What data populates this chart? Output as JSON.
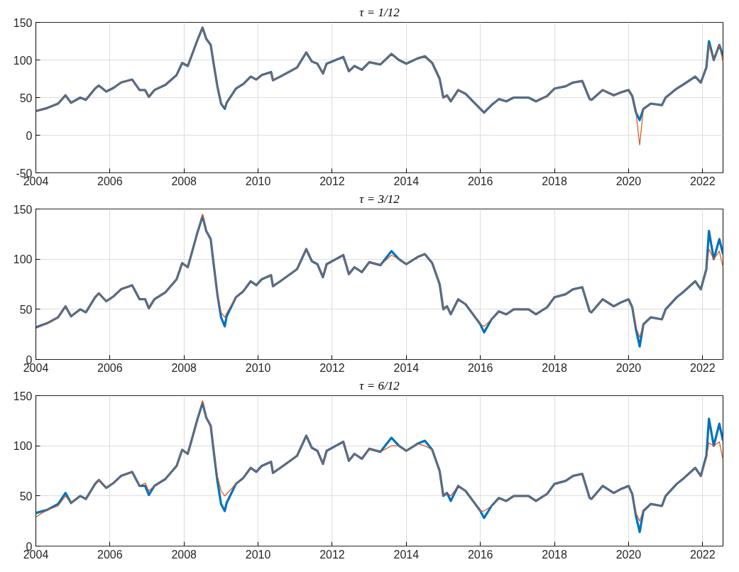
{
  "chart_data": [
    {
      "type": "line",
      "title": "τ = 1/12",
      "xlim": [
        2004,
        2022.55
      ],
      "xticks": [
        2004,
        2006,
        2008,
        2010,
        2012,
        2014,
        2016,
        2018,
        2020,
        2022
      ],
      "ylim": [
        -50,
        150
      ],
      "yticks": [
        -50,
        0,
        50,
        100,
        150
      ],
      "grid": true,
      "x": [
        2004.0,
        2004.3,
        2004.6,
        2004.8,
        2004.95,
        2005.2,
        2005.35,
        2005.6,
        2005.7,
        2005.9,
        2006.1,
        2006.3,
        2006.6,
        2006.8,
        2006.95,
        2007.05,
        2007.2,
        2007.5,
        2007.8,
        2007.95,
        2008.1,
        2008.2,
        2008.35,
        2008.5,
        2008.6,
        2008.72,
        2008.8,
        2008.9,
        2009.0,
        2009.1,
        2009.15,
        2009.4,
        2009.6,
        2009.8,
        2009.95,
        2010.1,
        2010.35,
        2010.4,
        2010.6,
        2010.9,
        2011.05,
        2011.3,
        2011.45,
        2011.6,
        2011.75,
        2011.85,
        2012.1,
        2012.3,
        2012.45,
        2012.6,
        2012.8,
        2013.0,
        2013.3,
        2013.6,
        2013.8,
        2014.0,
        2014.3,
        2014.5,
        2014.7,
        2014.9,
        2015.0,
        2015.1,
        2015.2,
        2015.4,
        2015.6,
        2015.8,
        2016.0,
        2016.1,
        2016.3,
        2016.5,
        2016.7,
        2016.9,
        2017.3,
        2017.5,
        2017.8,
        2018.0,
        2018.3,
        2018.5,
        2018.75,
        2018.95,
        2019.0,
        2019.3,
        2019.6,
        2019.8,
        2020.0,
        2020.1,
        2020.2,
        2020.3,
        2020.4,
        2020.6,
        2020.9,
        2021.0,
        2021.3,
        2021.5,
        2021.8,
        2021.95,
        2022.1,
        2022.17,
        2022.3,
        2022.45,
        2022.55
      ],
      "series": [
        {
          "color": "#0072bd",
          "values": [
            32,
            36,
            42,
            53,
            43,
            50,
            47,
            62,
            66,
            58,
            63,
            70,
            74,
            60,
            60,
            51,
            60,
            67,
            80,
            96,
            92,
            105,
            125,
            143,
            128,
            120,
            95,
            65,
            42,
            35,
            43,
            62,
            68,
            78,
            74,
            80,
            84,
            73,
            78,
            86,
            90,
            110,
            98,
            95,
            82,
            95,
            100,
            104,
            85,
            92,
            87,
            97,
            94,
            108,
            100,
            95,
            102,
            105,
            96,
            75,
            50,
            53,
            45,
            60,
            55,
            45,
            35,
            30,
            40,
            48,
            45,
            50,
            50,
            45,
            52,
            62,
            65,
            70,
            72,
            48,
            47,
            60,
            53,
            57,
            60,
            52,
            30,
            20,
            35,
            42,
            40,
            50,
            62,
            68,
            78,
            70,
            90,
            125,
            100,
            120,
            105
          ]
        },
        {
          "color": "#d95319",
          "values": [
            32,
            36,
            42,
            53,
            43,
            50,
            47,
            62,
            66,
            58,
            63,
            70,
            74,
            60,
            60,
            51,
            60,
            67,
            80,
            96,
            92,
            105,
            125,
            143,
            128,
            120,
            95,
            65,
            42,
            37,
            43,
            62,
            68,
            78,
            74,
            80,
            84,
            73,
            78,
            86,
            90,
            110,
            98,
            95,
            82,
            95,
            100,
            104,
            85,
            92,
            87,
            97,
            94,
            108,
            100,
            95,
            102,
            105,
            96,
            75,
            50,
            53,
            45,
            60,
            55,
            45,
            35,
            30,
            40,
            48,
            45,
            50,
            50,
            45,
            52,
            62,
            65,
            70,
            72,
            48,
            47,
            60,
            53,
            57,
            60,
            52,
            30,
            -13,
            35,
            42,
            40,
            50,
            62,
            68,
            78,
            70,
            90,
            120,
            100,
            120,
            97
          ]
        }
      ]
    },
    {
      "type": "line",
      "title": "τ = 3/12",
      "xlim": [
        2004,
        2022.55
      ],
      "xticks": [
        2004,
        2006,
        2008,
        2010,
        2012,
        2014,
        2016,
        2018,
        2020,
        2022
      ],
      "ylim": [
        0,
        150
      ],
      "yticks": [
        0,
        50,
        100,
        150
      ],
      "grid": true,
      "x": [
        2004.0,
        2004.3,
        2004.6,
        2004.8,
        2004.95,
        2005.2,
        2005.35,
        2005.6,
        2005.7,
        2005.9,
        2006.1,
        2006.3,
        2006.6,
        2006.8,
        2006.95,
        2007.05,
        2007.2,
        2007.5,
        2007.8,
        2007.95,
        2008.1,
        2008.2,
        2008.35,
        2008.5,
        2008.6,
        2008.72,
        2008.8,
        2008.9,
        2009.0,
        2009.1,
        2009.15,
        2009.4,
        2009.6,
        2009.8,
        2009.95,
        2010.1,
        2010.35,
        2010.4,
        2010.6,
        2010.9,
        2011.05,
        2011.3,
        2011.45,
        2011.6,
        2011.75,
        2011.85,
        2012.1,
        2012.3,
        2012.45,
        2012.6,
        2012.8,
        2013.0,
        2013.3,
        2013.6,
        2013.8,
        2014.0,
        2014.3,
        2014.5,
        2014.7,
        2014.9,
        2015.0,
        2015.1,
        2015.2,
        2015.4,
        2015.6,
        2015.8,
        2016.0,
        2016.1,
        2016.3,
        2016.5,
        2016.7,
        2016.9,
        2017.3,
        2017.5,
        2017.8,
        2018.0,
        2018.3,
        2018.5,
        2018.75,
        2018.95,
        2019.0,
        2019.3,
        2019.6,
        2019.8,
        2020.0,
        2020.1,
        2020.2,
        2020.3,
        2020.4,
        2020.6,
        2020.9,
        2021.0,
        2021.3,
        2021.5,
        2021.8,
        2021.95,
        2022.1,
        2022.17,
        2022.3,
        2022.45,
        2022.55
      ],
      "series": [
        {
          "color": "#0072bd",
          "values": [
            32,
            36,
            42,
            53,
            43,
            50,
            47,
            62,
            66,
            58,
            63,
            70,
            74,
            60,
            60,
            51,
            60,
            67,
            80,
            96,
            92,
            105,
            125,
            143,
            128,
            120,
            95,
            65,
            42,
            33,
            43,
            62,
            68,
            78,
            74,
            80,
            84,
            73,
            78,
            86,
            90,
            110,
            98,
            95,
            82,
            95,
            100,
            104,
            85,
            92,
            87,
            97,
            94,
            108,
            100,
            95,
            102,
            105,
            96,
            75,
            50,
            53,
            45,
            60,
            55,
            45,
            35,
            27,
            40,
            48,
            45,
            50,
            50,
            45,
            52,
            62,
            65,
            70,
            72,
            48,
            47,
            60,
            53,
            57,
            60,
            52,
            30,
            13,
            35,
            42,
            40,
            50,
            62,
            68,
            78,
            70,
            90,
            128,
            100,
            120,
            105
          ]
        },
        {
          "color": "#d95319",
          "values": [
            31,
            36,
            42,
            53,
            43,
            50,
            47,
            62,
            66,
            58,
            63,
            70,
            74,
            60,
            60,
            51,
            60,
            67,
            80,
            96,
            92,
            105,
            125,
            145,
            128,
            120,
            95,
            65,
            47,
            42,
            46,
            62,
            68,
            78,
            74,
            80,
            84,
            73,
            78,
            86,
            90,
            110,
            98,
            95,
            82,
            95,
            100,
            104,
            85,
            92,
            87,
            97,
            94,
            104,
            100,
            95,
            102,
            105,
            96,
            75,
            50,
            53,
            45,
            60,
            55,
            45,
            35,
            33,
            40,
            48,
            45,
            50,
            50,
            45,
            52,
            62,
            65,
            70,
            72,
            48,
            47,
            60,
            53,
            57,
            60,
            52,
            32,
            22,
            35,
            42,
            40,
            50,
            62,
            68,
            78,
            70,
            90,
            110,
            100,
            108,
            92
          ]
        }
      ]
    },
    {
      "type": "line",
      "title": "τ = 6/12",
      "xlim": [
        2004,
        2022.55
      ],
      "xticks": [
        2004,
        2006,
        2008,
        2010,
        2012,
        2014,
        2016,
        2018,
        2020,
        2022
      ],
      "ylim": [
        0,
        150
      ],
      "yticks": [
        0,
        50,
        100,
        150
      ],
      "grid": true,
      "x": [
        2004.0,
        2004.3,
        2004.6,
        2004.8,
        2004.95,
        2005.2,
        2005.35,
        2005.6,
        2005.7,
        2005.9,
        2006.1,
        2006.3,
        2006.6,
        2006.8,
        2006.95,
        2007.05,
        2007.2,
        2007.5,
        2007.8,
        2007.95,
        2008.1,
        2008.2,
        2008.35,
        2008.5,
        2008.6,
        2008.72,
        2008.8,
        2008.9,
        2009.0,
        2009.1,
        2009.15,
        2009.4,
        2009.6,
        2009.8,
        2009.95,
        2010.1,
        2010.35,
        2010.4,
        2010.6,
        2010.9,
        2011.05,
        2011.3,
        2011.45,
        2011.6,
        2011.75,
        2011.85,
        2012.1,
        2012.3,
        2012.45,
        2012.6,
        2012.8,
        2013.0,
        2013.3,
        2013.6,
        2013.8,
        2014.0,
        2014.3,
        2014.5,
        2014.7,
        2014.9,
        2015.0,
        2015.1,
        2015.2,
        2015.4,
        2015.6,
        2015.8,
        2016.0,
        2016.1,
        2016.3,
        2016.5,
        2016.7,
        2016.9,
        2017.3,
        2017.5,
        2017.8,
        2018.0,
        2018.3,
        2018.5,
        2018.75,
        2018.95,
        2019.0,
        2019.3,
        2019.6,
        2019.8,
        2020.0,
        2020.1,
        2020.2,
        2020.3,
        2020.4,
        2020.6,
        2020.9,
        2021.0,
        2021.3,
        2021.5,
        2021.8,
        2021.95,
        2022.1,
        2022.17,
        2022.3,
        2022.45,
        2022.55
      ],
      "series": [
        {
          "color": "#0072bd",
          "values": [
            33,
            36,
            42,
            53,
            43,
            50,
            47,
            62,
            66,
            58,
            63,
            70,
            74,
            60,
            60,
            51,
            60,
            67,
            80,
            96,
            92,
            105,
            125,
            143,
            128,
            120,
            95,
            65,
            42,
            35,
            43,
            62,
            68,
            78,
            74,
            80,
            84,
            73,
            78,
            86,
            90,
            110,
            98,
            95,
            82,
            95,
            100,
            104,
            85,
            92,
            87,
            97,
            94,
            108,
            100,
            95,
            102,
            105,
            96,
            75,
            50,
            53,
            45,
            60,
            55,
            45,
            35,
            28,
            40,
            48,
            45,
            50,
            50,
            45,
            52,
            62,
            65,
            70,
            72,
            48,
            47,
            60,
            53,
            57,
            60,
            52,
            30,
            14,
            35,
            42,
            40,
            50,
            62,
            68,
            78,
            70,
            90,
            127,
            100,
            122,
            105
          ]
        },
        {
          "color": "#d95319",
          "values": [
            29,
            36,
            40,
            50,
            43,
            50,
            47,
            62,
            66,
            58,
            63,
            70,
            74,
            60,
            63,
            55,
            60,
            67,
            80,
            96,
            92,
            105,
            125,
            145,
            128,
            120,
            95,
            70,
            55,
            50,
            52,
            62,
            68,
            78,
            74,
            80,
            84,
            73,
            78,
            86,
            90,
            110,
            98,
            95,
            82,
            95,
            100,
            104,
            85,
            92,
            87,
            97,
            94,
            100,
            100,
            95,
            102,
            100,
            96,
            75,
            50,
            53,
            50,
            60,
            55,
            45,
            35,
            35,
            40,
            48,
            45,
            50,
            50,
            45,
            52,
            62,
            65,
            70,
            72,
            48,
            47,
            60,
            53,
            57,
            60,
            52,
            33,
            25,
            36,
            42,
            40,
            50,
            62,
            68,
            78,
            70,
            88,
            103,
            100,
            104,
            86
          ]
        }
      ]
    }
  ]
}
